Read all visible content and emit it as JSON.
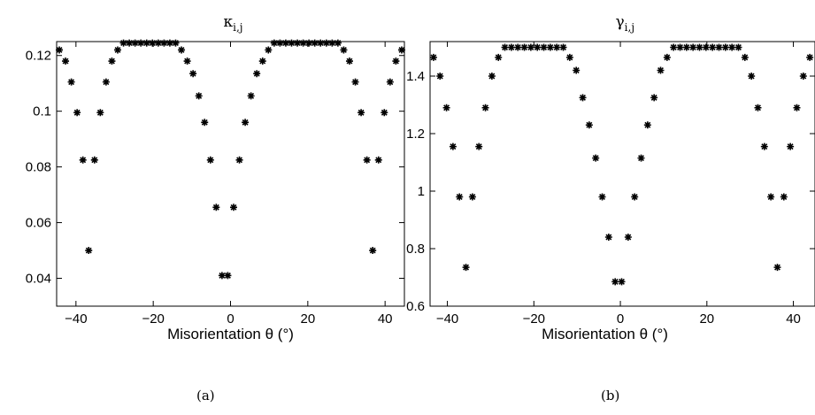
{
  "chart_data": [
    {
      "type": "scatter",
      "title": "κ",
      "title_subscript": "i,j",
      "xlabel": "Misorientation θ (°)",
      "ylabel": "",
      "xlim": [
        -45,
        45
      ],
      "ylim": [
        0.03,
        0.125
      ],
      "xticks": [
        -40,
        -20,
        0,
        20,
        40
      ],
      "xtick_labels": [
        "−40",
        "−20",
        "0",
        "20",
        "40"
      ],
      "yticks": [
        0.04,
        0.06,
        0.08,
        0.1,
        0.12
      ],
      "ytick_labels": [
        "0.04",
        "0.06",
        "0.08",
        "0.1",
        "0.12"
      ],
      "marker": "asterisk",
      "caption": "(a)",
      "points": [
        [
          -44.3,
          0.122
        ],
        [
          -42.7,
          0.118
        ],
        [
          -41.2,
          0.1105
        ],
        [
          -39.7,
          0.0995
        ],
        [
          -38.2,
          0.0825
        ],
        [
          -36.7,
          0.05
        ],
        [
          -35.2,
          0.0825
        ],
        [
          -33.7,
          0.0995
        ],
        [
          -32.2,
          0.1105
        ],
        [
          -30.7,
          0.118
        ],
        [
          -29.2,
          0.122
        ],
        [
          -27.7,
          0.1245
        ],
        [
          -26.2,
          0.1245
        ],
        [
          -24.7,
          0.1245
        ],
        [
          -23.2,
          0.1245
        ],
        [
          -21.7,
          0.1245
        ],
        [
          -20.2,
          0.1245
        ],
        [
          -18.7,
          0.1245
        ],
        [
          -17.2,
          0.1245
        ],
        [
          -15.7,
          0.1245
        ],
        [
          -14.2,
          0.1245
        ],
        [
          -12.7,
          0.122
        ],
        [
          -11.2,
          0.118
        ],
        [
          -9.7,
          0.1135
        ],
        [
          -8.2,
          0.1055
        ],
        [
          -6.7,
          0.096
        ],
        [
          -5.2,
          0.0825
        ],
        [
          -3.7,
          0.0655
        ],
        [
          -2.2,
          0.041
        ],
        [
          -0.7,
          0.041
        ],
        [
          0.8,
          0.0655
        ],
        [
          2.3,
          0.0825
        ],
        [
          3.8,
          0.096
        ],
        [
          5.3,
          0.1055
        ],
        [
          6.8,
          0.1135
        ],
        [
          8.3,
          0.118
        ],
        [
          9.8,
          0.122
        ],
        [
          11.3,
          0.1245
        ],
        [
          12.8,
          0.1245
        ],
        [
          14.3,
          0.1245
        ],
        [
          15.8,
          0.1245
        ],
        [
          17.3,
          0.1245
        ],
        [
          18.8,
          0.1245
        ],
        [
          20.3,
          0.1245
        ],
        [
          21.8,
          0.1245
        ],
        [
          23.3,
          0.1245
        ],
        [
          24.8,
          0.1245
        ],
        [
          26.3,
          0.1245
        ],
        [
          27.8,
          0.1245
        ],
        [
          29.3,
          0.122
        ],
        [
          30.8,
          0.118
        ],
        [
          32.3,
          0.1105
        ],
        [
          33.8,
          0.0995
        ],
        [
          35.3,
          0.0825
        ],
        [
          36.8,
          0.05
        ],
        [
          38.3,
          0.0825
        ],
        [
          39.8,
          0.0995
        ],
        [
          41.3,
          0.1105
        ],
        [
          42.8,
          0.118
        ],
        [
          44.3,
          0.122
        ]
      ]
    },
    {
      "type": "scatter",
      "title": "γ",
      "title_subscript": "i,j",
      "xlabel": "Misorientation θ (°)",
      "ylabel": "",
      "xlim": [
        -44,
        45
      ],
      "ylim": [
        0.6,
        1.52
      ],
      "xticks": [
        -40,
        -20,
        0,
        20,
        40
      ],
      "xtick_labels": [
        "−40",
        "−20",
        "0",
        "20",
        "40"
      ],
      "yticks": [
        0.6,
        0.8,
        1.0,
        1.2,
        1.4
      ],
      "ytick_labels": [
        "0.6",
        "0.8",
        "1",
        "1.2",
        "1.4"
      ],
      "marker": "asterisk",
      "caption": "(b)",
      "points": [
        [
          -43.2,
          1.465
        ],
        [
          -41.7,
          1.4
        ],
        [
          -40.2,
          1.29
        ],
        [
          -38.7,
          1.155
        ],
        [
          -37.2,
          0.98
        ],
        [
          -35.7,
          0.735
        ],
        [
          -34.2,
          0.98
        ],
        [
          -32.7,
          1.155
        ],
        [
          -31.2,
          1.29
        ],
        [
          -29.7,
          1.4
        ],
        [
          -28.2,
          1.465
        ],
        [
          -26.7,
          1.5
        ],
        [
          -25.2,
          1.5
        ],
        [
          -23.7,
          1.5
        ],
        [
          -22.2,
          1.5
        ],
        [
          -20.7,
          1.5
        ],
        [
          -19.2,
          1.5
        ],
        [
          -17.7,
          1.5
        ],
        [
          -16.2,
          1.5
        ],
        [
          -14.7,
          1.5
        ],
        [
          -13.2,
          1.5
        ],
        [
          -11.7,
          1.465
        ],
        [
          -10.2,
          1.42
        ],
        [
          -8.7,
          1.325
        ],
        [
          -7.2,
          1.23
        ],
        [
          -5.7,
          1.115
        ],
        [
          -4.2,
          0.98
        ],
        [
          -2.7,
          0.84
        ],
        [
          -1.2,
          0.685
        ],
        [
          0.3,
          0.685
        ],
        [
          1.8,
          0.84
        ],
        [
          3.3,
          0.98
        ],
        [
          4.8,
          1.115
        ],
        [
          6.3,
          1.23
        ],
        [
          7.8,
          1.325
        ],
        [
          9.3,
          1.42
        ],
        [
          10.8,
          1.465
        ],
        [
          12.3,
          1.5
        ],
        [
          13.8,
          1.5
        ],
        [
          15.3,
          1.5
        ],
        [
          16.8,
          1.5
        ],
        [
          18.3,
          1.5
        ],
        [
          19.8,
          1.5
        ],
        [
          21.3,
          1.5
        ],
        [
          22.8,
          1.5
        ],
        [
          24.3,
          1.5
        ],
        [
          25.8,
          1.5
        ],
        [
          27.3,
          1.5
        ],
        [
          28.8,
          1.465
        ],
        [
          30.3,
          1.4
        ],
        [
          31.8,
          1.29
        ],
        [
          33.3,
          1.155
        ],
        [
          34.8,
          0.98
        ],
        [
          36.3,
          0.735
        ],
        [
          37.8,
          0.98
        ],
        [
          39.3,
          1.155
        ],
        [
          40.8,
          1.29
        ],
        [
          42.3,
          1.4
        ],
        [
          43.8,
          1.465
        ]
      ]
    }
  ]
}
